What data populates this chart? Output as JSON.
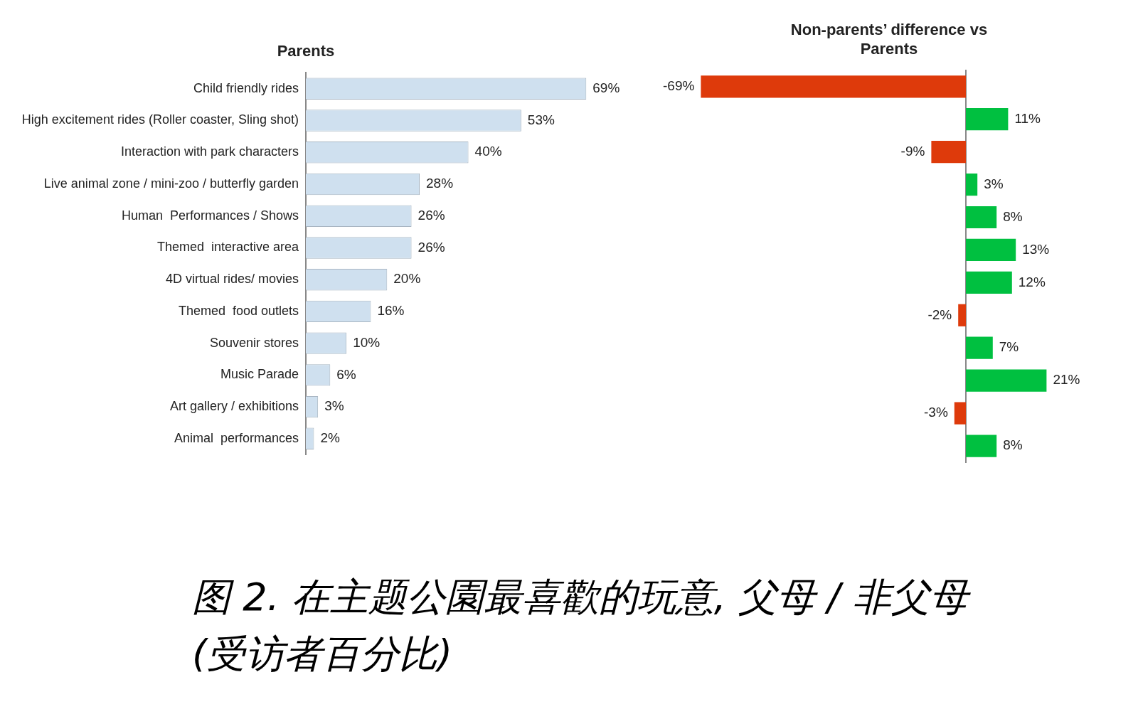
{
  "chart_data": [
    {
      "type": "bar",
      "orientation": "horizontal",
      "title": "Parents",
      "categories": [
        "Child friendly rides",
        "High excitement rides (Roller coaster, Sling shot)",
        "Interaction with park characters",
        "Live animal zone / mini-zoo / butterfly garden",
        "Human  Performances / Shows",
        "Themed  interactive area",
        "4D virtual rides/ movies",
        "Themed  food outlets",
        "Souvenir stores",
        "Music Parade",
        "Art gallery / exhibitions",
        "Animal  performances"
      ],
      "values": [
        69,
        53,
        40,
        28,
        26,
        26,
        20,
        16,
        10,
        6,
        3,
        2
      ],
      "value_labels": [
        "69%",
        "53%",
        "40%",
        "28%",
        "26%",
        "26%",
        "20%",
        "16%",
        "10%",
        "6%",
        "3%",
        "2%"
      ],
      "color": "#cfe0ef",
      "tick_labels": "y",
      "grid": false,
      "legend": false,
      "annotations": [
        "图 2. 在主题公園最喜歡的玩意, 父母 / 非父母 (受访者百分比)"
      ]
    },
    {
      "type": "bar",
      "orientation": "horizontal",
      "title": "Non-parents’ difference vs Parents",
      "categories": [
        null,
        null,
        null,
        null,
        null,
        null,
        null,
        null,
        null,
        null,
        null,
        null
      ],
      "values": [
        -69,
        11,
        -9,
        3,
        8,
        13,
        12,
        -2,
        7,
        21,
        -3,
        8
      ],
      "value_labels": [
        "-69%",
        "11%",
        "-9%",
        "3%",
        "8%",
        "13%",
        "12%",
        "-2%",
        "7%",
        "21%",
        "-3%",
        "8%"
      ],
      "colors": [
        "#de3a0b",
        "#00c040",
        "#de3a0b",
        "#00c040",
        "#00c040",
        "#00c040",
        "#00c040",
        "#de3a0b",
        "#00c040",
        "#00c040",
        "#de3a0b",
        "#00c040"
      ],
      "tick_labels": false,
      "grid": false,
      "legend": false
    }
  ]
}
